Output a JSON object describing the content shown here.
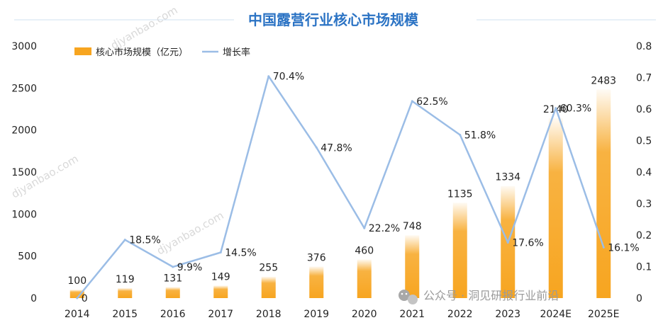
{
  "chart_data": {
    "type": "bar+line",
    "title": "中国露营行业核心市场规模",
    "categories": [
      "2014",
      "2015",
      "2016",
      "2017",
      "2018",
      "2019",
      "2020",
      "2021",
      "2022",
      "2023",
      "2024E",
      "2025E"
    ],
    "series": [
      {
        "name": "核心市场规模（亿元）",
        "type": "bar",
        "axis": "left",
        "color": "#f7a520",
        "values": [
          100,
          119,
          131,
          149,
          255,
          376,
          460,
          748,
          1135,
          1334,
          2140,
          2483
        ],
        "labels": [
          "100",
          "119",
          "131",
          "149",
          "255",
          "376",
          "460",
          "748",
          "1135",
          "1334",
          "2140",
          "2483"
        ]
      },
      {
        "name": "增长率",
        "type": "line",
        "axis": "right",
        "color": "#9bbde6",
        "values": [
          0,
          0.185,
          0.099,
          0.145,
          0.704,
          0.478,
          0.222,
          0.625,
          0.518,
          0.176,
          0.603,
          0.161
        ],
        "labels": [
          "0",
          "18.5%",
          "9.9%",
          "14.5%",
          "70.4%",
          "47.8%",
          "22.2%",
          "62.5%",
          "51.8%",
          "17.6%",
          "60.3%",
          "16.1%"
        ]
      }
    ],
    "y_left": {
      "min": 0,
      "max": 3000,
      "ticks": [
        "0",
        "500",
        "1000",
        "1500",
        "2000",
        "2500",
        "3000"
      ]
    },
    "y_right": {
      "min": 0,
      "max": 0.8,
      "ticks": [
        "0",
        "0.1",
        "0.2",
        "0.3",
        "0.4",
        "0.5",
        "0.6",
        "0.7",
        "0.8"
      ]
    },
    "legend_position": "top-left",
    "grid": false
  },
  "watermark": {
    "text": "公众号 · 洞见研报行业前沿",
    "faint_text": "djyanbao.com",
    "icon": "wechat-icon"
  }
}
